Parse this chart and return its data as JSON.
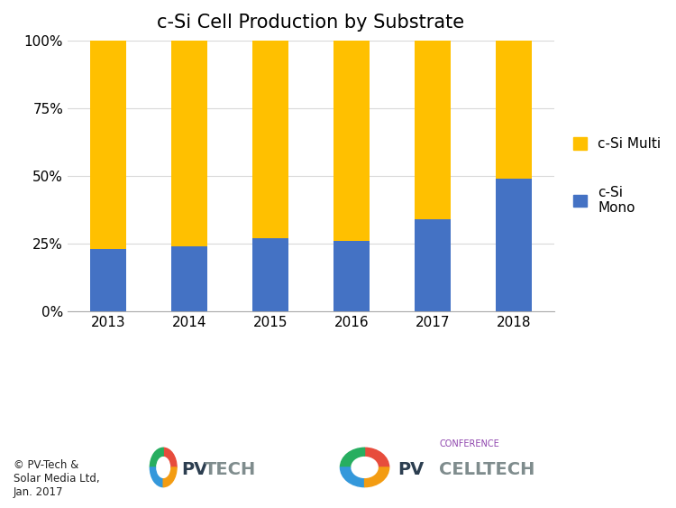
{
  "title": "c-Si Cell Production by Substrate",
  "years": [
    "2013",
    "2014",
    "2015",
    "2016",
    "2017",
    "2018"
  ],
  "mono_values": [
    0.23,
    0.24,
    0.27,
    0.26,
    0.34,
    0.49
  ],
  "multi_values": [
    0.77,
    0.76,
    0.73,
    0.74,
    0.66,
    0.51
  ],
  "mono_color": "#4472C4",
  "multi_color": "#FFC000",
  "yticks": [
    0.0,
    0.25,
    0.5,
    0.75,
    1.0
  ],
  "ytick_labels": [
    "0%",
    "25%",
    "50%",
    "75%",
    "100%"
  ],
  "bar_width": 0.45,
  "title_fontsize": 15,
  "tick_fontsize": 11,
  "legend_fontsize": 11,
  "background_color": "#FFFFFF",
  "footer_text": "© PV-Tech &\nSolar Media Ltd,\nJan. 2017",
  "pvtech_text": "PV",
  "pvtech_text2": "TECH",
  "pvcelltech_text": "PV",
  "pvcelltech_text2": "CELLTECH",
  "conference_text": "CONFERENCE",
  "grid_color": "#D9D9D9",
  "spine_color": "#AAAAAA"
}
